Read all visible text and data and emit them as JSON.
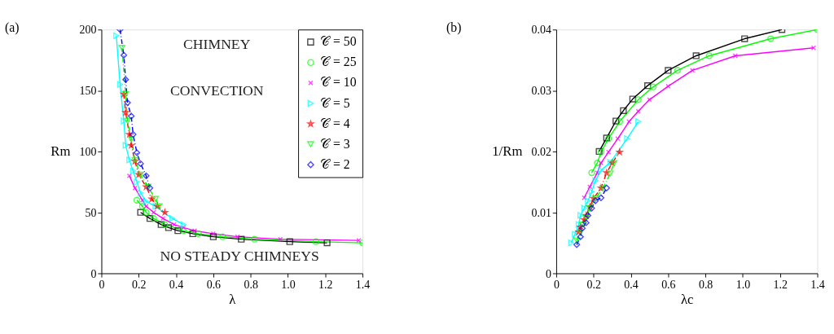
{
  "chart_data": [
    {
      "type": "line",
      "title": "(a)",
      "xlabel": "λ",
      "ylabel": "Rm",
      "xlim": [
        0,
        1.4
      ],
      "ylim": [
        0,
        200
      ],
      "xticks": [
        0,
        0.2,
        0.4,
        0.6,
        0.8,
        {
          "value": 1,
          "label": "1.0"
        },
        1.2,
        1.4
      ],
      "yticks": [
        0,
        50,
        100,
        150,
        200
      ],
      "grid": false,
      "legend": "top right",
      "annotations": [
        "CHIMNEY",
        "CONVECTION",
        "NO STEADY CHIMNEYS"
      ],
      "series": [
        {
          "name": "𝒞 = 50",
          "color": "#000000",
          "marker": "square",
          "line_style": "solid",
          "x": [
            0.21,
            0.26,
            0.32,
            0.36,
            0.41,
            0.49,
            0.6,
            0.75,
            1.01,
            1.21
          ],
          "values": [
            50,
            45,
            40,
            37.5,
            35,
            32.5,
            30,
            28,
            26,
            25
          ]
        },
        {
          "name": "𝒞 = 25",
          "color": "#00ff00",
          "marker": "circle",
          "line_style": "solid",
          "x": [
            0.19,
            0.22,
            0.24,
            0.28,
            0.34,
            0.44,
            0.52,
            0.65,
            0.82,
            1.15,
            1.4
          ],
          "values": [
            60,
            55,
            50,
            45,
            40,
            35,
            32.5,
            30,
            28,
            26,
            25
          ]
        },
        {
          "name": "𝒞 = 10",
          "color": "#ff00ff",
          "marker": "cross",
          "line_style": "solid",
          "x": [
            0.15,
            0.18,
            0.22,
            0.24,
            0.28,
            0.33,
            0.39,
            0.44,
            0.5,
            0.6,
            0.73,
            0.96,
            1.38
          ],
          "values": [
            80,
            70,
            60,
            55,
            50,
            45,
            40,
            37.5,
            35,
            32.5,
            30,
            28,
            27
          ]
        },
        {
          "name": "𝒞 = 5",
          "color": "#00ffff",
          "marker": "triangle-right",
          "line_style": "solid",
          "x": [
            0.08,
            0.1,
            0.12,
            0.13,
            0.15,
            0.17,
            0.19,
            0.21,
            0.24,
            0.29,
            0.38,
            0.44
          ],
          "values": [
            195,
            155,
            125,
            105,
            93,
            84,
            75,
            66,
            59,
            55,
            45,
            40
          ]
        },
        {
          "name": "𝒞 = 4",
          "color": "#ff0000",
          "marker": "star",
          "line_style": "dashed",
          "x": [
            0.12,
            0.13,
            0.15,
            0.16,
            0.18,
            0.2,
            0.24,
            0.27,
            0.3,
            0.34
          ],
          "values": [
            147,
            132,
            114,
            105,
            92,
            81,
            71,
            61,
            55,
            50
          ]
        },
        {
          "name": "𝒞 = 3",
          "color": "#00ff00",
          "marker": "triangle-down",
          "line_style": "dashed",
          "x": [
            0.11,
            0.13,
            0.14,
            0.16,
            0.18,
            0.21,
            0.25,
            0.29,
            0.31
          ],
          "values": [
            185,
            147,
            125,
            110,
            93,
            81,
            71,
            61,
            55
          ]
        },
        {
          "name": "𝒞 = 2",
          "color": "#0000ff",
          "marker": "diamond",
          "line_style": "dashed",
          "x": [
            0.1,
            0.12,
            0.13,
            0.14,
            0.16,
            0.17,
            0.19,
            0.21,
            0.24,
            0.26
          ],
          "values": [
            200,
            179,
            159,
            140,
            129,
            114,
            99,
            90,
            80,
            70
          ]
        }
      ]
    },
    {
      "type": "line",
      "title": "(b)",
      "xlabel": "λc",
      "ylabel": "1/Rm",
      "xlim": [
        0,
        1.4
      ],
      "ylim": [
        0,
        0.04
      ],
      "xticks": [
        0,
        0.2,
        0.4,
        0.6,
        0.8,
        {
          "value": 1,
          "label": "1.0"
        },
        1.2,
        1.4
      ],
      "yticks": [
        0,
        0.01,
        0.02,
        0.03,
        0.04
      ],
      "grid": false,
      "legend": false,
      "series": [
        {
          "color": "#000000",
          "marker": "square",
          "line_style": "solid",
          "x": [
            0.23,
            0.27,
            0.32,
            0.36,
            0.41,
            0.49,
            0.6,
            0.75,
            1.01,
            1.21
          ],
          "values": [
            0.02,
            0.0222,
            0.025,
            0.0267,
            0.0286,
            0.0308,
            0.0333,
            0.0357,
            0.0385,
            0.04
          ]
        },
        {
          "color": "#00ff00",
          "marker": "circle",
          "line_style": "solid",
          "x": [
            0.19,
            0.22,
            0.24,
            0.28,
            0.34,
            0.44,
            0.52,
            0.65,
            0.82,
            1.15,
            1.4
          ],
          "values": [
            0.0165,
            0.0181,
            0.0199,
            0.0221,
            0.0249,
            0.0285,
            0.0306,
            0.0333,
            0.0357,
            0.0385,
            0.04
          ]
        },
        {
          "color": "#ff00ff",
          "marker": "cross",
          "line_style": "solid",
          "x": [
            0.15,
            0.18,
            0.22,
            0.24,
            0.28,
            0.33,
            0.39,
            0.44,
            0.5,
            0.6,
            0.73,
            0.96,
            1.38
          ],
          "values": [
            0.0124,
            0.0142,
            0.0165,
            0.0181,
            0.0199,
            0.0221,
            0.0249,
            0.0266,
            0.0285,
            0.0307,
            0.0333,
            0.0357,
            0.037
          ]
        },
        {
          "color": "#00ffff",
          "marker": "triangle-right",
          "line_style": "solid",
          "x": [
            0.08,
            0.1,
            0.12,
            0.13,
            0.15,
            0.17,
            0.19,
            0.21,
            0.24,
            0.29,
            0.38,
            0.44
          ],
          "values": [
            0.005,
            0.0064,
            0.008,
            0.0095,
            0.0107,
            0.0119,
            0.0134,
            0.0152,
            0.0169,
            0.0182,
            0.0221,
            0.0249
          ]
        },
        {
          "color": "#ff0000",
          "marker": "star",
          "line_style": "dashed",
          "x": [
            0.12,
            0.13,
            0.15,
            0.16,
            0.18,
            0.2,
            0.24,
            0.27,
            0.3,
            0.34
          ],
          "values": [
            0.0068,
            0.0076,
            0.0088,
            0.0095,
            0.0109,
            0.0123,
            0.014,
            0.0165,
            0.0181,
            0.0199
          ]
        },
        {
          "color": "#00ff00",
          "marker": "triangle-down",
          "line_style": "dashed",
          "x": [
            0.11,
            0.13,
            0.14,
            0.16,
            0.18,
            0.21,
            0.25,
            0.29,
            0.31
          ],
          "values": [
            0.0054,
            0.0068,
            0.008,
            0.0091,
            0.0107,
            0.0123,
            0.014,
            0.0164,
            0.0181
          ]
        },
        {
          "color": "#0000ff",
          "marker": "diamond",
          "line_style": "dashed",
          "x": [
            0.11,
            0.13,
            0.14,
            0.16,
            0.17,
            0.19,
            0.21,
            0.24,
            0.27
          ],
          "values": [
            0.0047,
            0.006,
            0.0074,
            0.0083,
            0.0095,
            0.0107,
            0.0119,
            0.0124,
            0.014
          ]
        }
      ]
    }
  ]
}
